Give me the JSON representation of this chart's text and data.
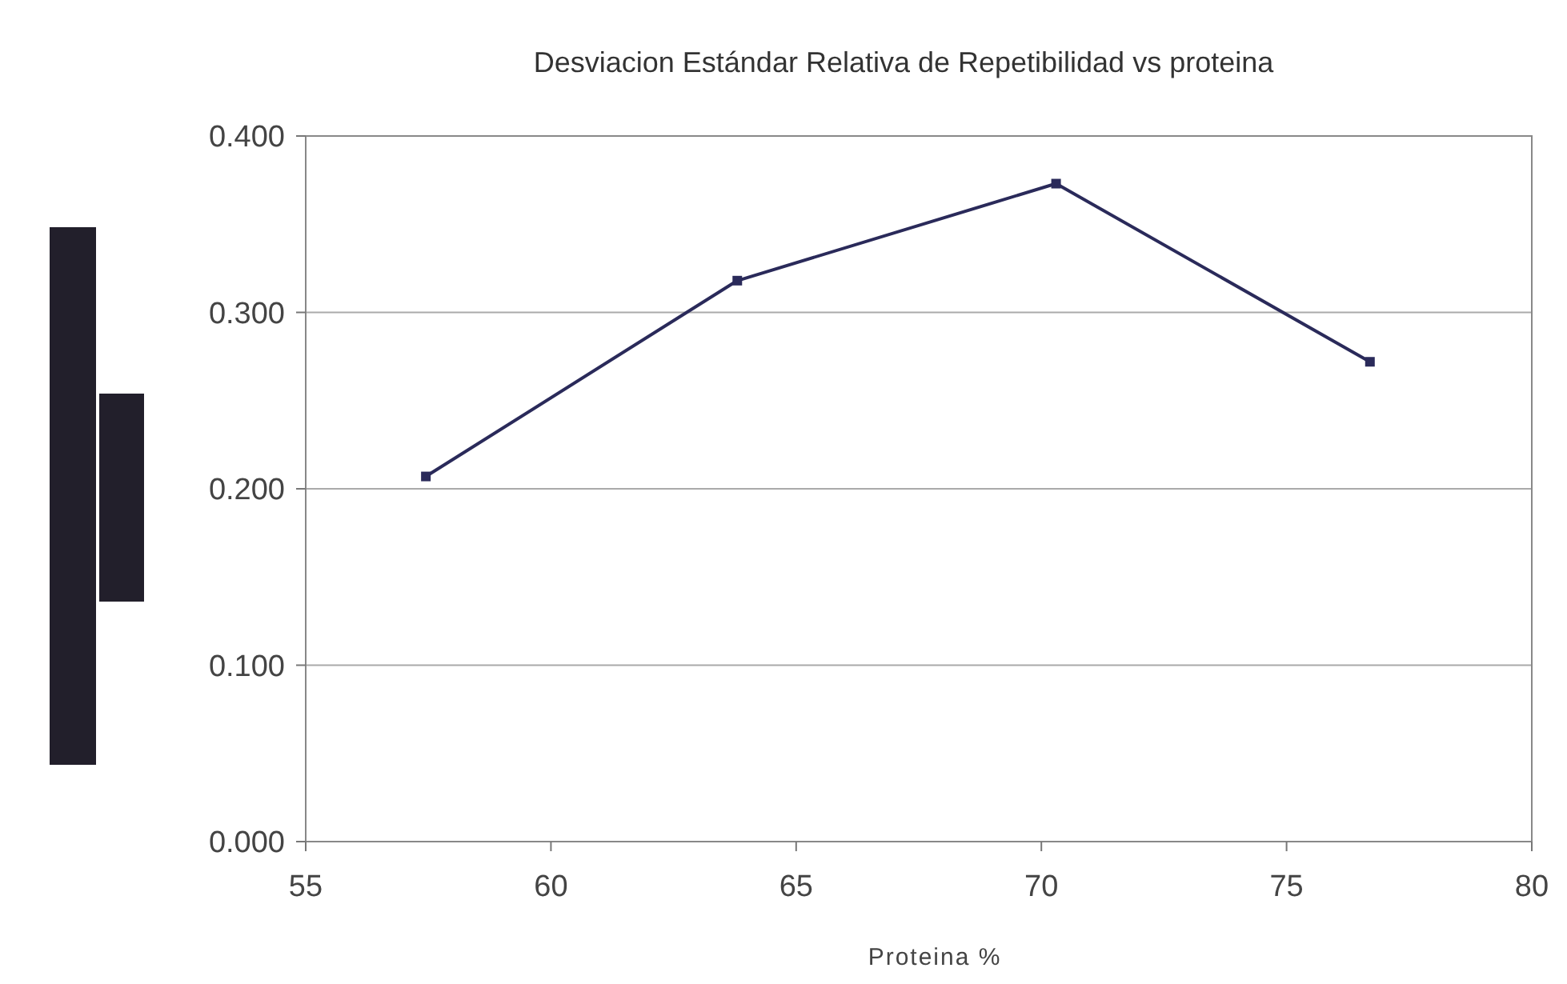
{
  "chart_data": {
    "type": "line",
    "title": "Desviacion Estándar Relativa de Repetibilidad vs proteina",
    "xlabel": "Proteina %",
    "x": [
      57.45,
      63.8,
      70.3,
      76.7
    ],
    "series": [
      {
        "color": "#2a2a5a",
        "values": [
          0.207,
          0.318,
          0.373,
          0.272
        ]
      }
    ],
    "xlim": [
      55,
      80
    ],
    "xticks": [
      55,
      60,
      65,
      70,
      75,
      80
    ],
    "ylim": [
      0,
      0.4
    ],
    "yticks": [
      {
        "value": 0,
        "label": "0.000"
      },
      {
        "value": 0.1,
        "label": "0.100"
      },
      {
        "value": 0.2,
        "label": "0.200"
      },
      {
        "value": 0.3,
        "label": "0.300"
      },
      {
        "value": 0.4,
        "label": "0.400"
      }
    ],
    "grid": "y",
    "marker": "square",
    "line_style": "solid"
  }
}
